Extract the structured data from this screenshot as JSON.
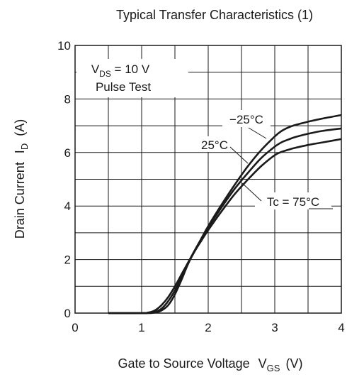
{
  "chart_data": {
    "type": "line",
    "title": "Typical Transfer Characteristics (1)",
    "xlabel": {
      "main": "Gate to Source Voltage",
      "symbol": "V",
      "sub": "GS",
      "unit": "(V)"
    },
    "ylabel": {
      "main": "Drain Current",
      "symbol": "I",
      "sub": "D",
      "unit": "(A)"
    },
    "xlim": [
      0,
      4
    ],
    "ylim": [
      0,
      10
    ],
    "x_ticks": [
      "0",
      "1",
      "2",
      "3",
      "4"
    ],
    "y_ticks": [
      "0",
      "2",
      "4",
      "6",
      "8",
      "10"
    ],
    "grid": true,
    "conditions": {
      "symbol": "V",
      "sub": "DS",
      "rest": " = 10 V",
      "line2": "Pulse Test"
    },
    "series": [
      {
        "name": "−25°C",
        "x": [
          0.5,
          1.0,
          1.1,
          1.2,
          1.3,
          1.4,
          1.5,
          1.6,
          1.7,
          1.8,
          1.9,
          2.0,
          2.2,
          2.4,
          2.6,
          2.8,
          3.0,
          3.1,
          3.2,
          3.3,
          3.5,
          3.7,
          4.0
        ],
        "y": [
          0.0,
          0.0,
          0.02,
          0.1,
          0.3,
          0.6,
          1.0,
          1.45,
          1.9,
          2.35,
          2.8,
          3.25,
          4.05,
          4.8,
          5.5,
          6.1,
          6.6,
          6.8,
          6.93,
          7.02,
          7.15,
          7.26,
          7.4
        ]
      },
      {
        "name": "25°C",
        "x": [
          0.5,
          1.0,
          1.1,
          1.2,
          1.3,
          1.4,
          1.5,
          1.6,
          1.7,
          1.8,
          1.9,
          2.0,
          2.2,
          2.4,
          2.6,
          2.8,
          3.0,
          3.1,
          3.2,
          3.3,
          3.5,
          3.7,
          4.0
        ],
        "y": [
          0.0,
          0.0,
          0.01,
          0.04,
          0.17,
          0.45,
          0.85,
          1.35,
          1.88,
          2.35,
          2.78,
          3.2,
          3.95,
          4.65,
          5.25,
          5.8,
          6.22,
          6.38,
          6.48,
          6.57,
          6.7,
          6.8,
          6.9
        ]
      },
      {
        "name": "Tc = 75°C",
        "x": [
          0.5,
          1.0,
          1.1,
          1.2,
          1.3,
          1.4,
          1.5,
          1.6,
          1.7,
          1.8,
          1.9,
          2.0,
          2.2,
          2.4,
          2.6,
          2.8,
          3.0,
          3.1,
          3.2,
          3.3,
          3.5,
          3.7,
          4.0
        ],
        "y": [
          0.0,
          0.0,
          0.0,
          0.02,
          0.1,
          0.3,
          0.7,
          1.25,
          1.85,
          2.32,
          2.72,
          3.1,
          3.8,
          4.45,
          5.0,
          5.5,
          5.9,
          6.02,
          6.1,
          6.17,
          6.28,
          6.37,
          6.5
        ]
      }
    ],
    "series_labels": [
      {
        "text": "−25°C"
      },
      {
        "text": "25°C"
      },
      {
        "text": "Tc = 75°C"
      }
    ]
  }
}
